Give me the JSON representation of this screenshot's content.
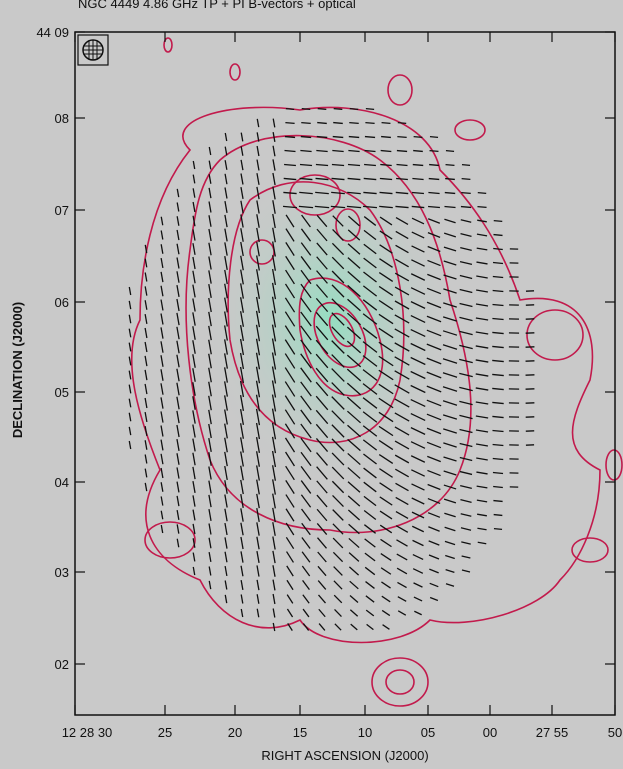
{
  "title": "NGC 4449 4.86 GHz TP + PI B-vectors + optical",
  "x_axis": {
    "label": "RIGHT ASCENSION (J2000)",
    "ticks": [
      "12 28 30",
      "25",
      "20",
      "15",
      "10",
      "05",
      "00",
      "27 55",
      "50"
    ]
  },
  "y_axis": {
    "label": "DECLINATION (J2000)",
    "ticks": [
      "44 09",
      "08",
      "07",
      "06",
      "05",
      "04",
      "03",
      "02"
    ]
  }
}
